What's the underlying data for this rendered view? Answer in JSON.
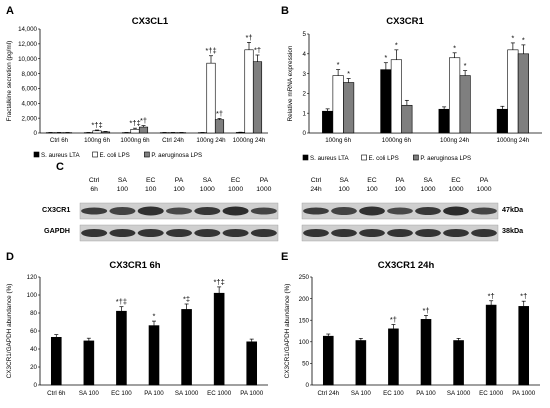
{
  "panels": {
    "A": {
      "letter": "A",
      "title": "CX3CL1"
    },
    "B": {
      "letter": "B",
      "title": "CX3CR1"
    },
    "C": {
      "letter": "C"
    },
    "D": {
      "letter": "D",
      "title": "CX3CR1 6h"
    },
    "E": {
      "letter": "E",
      "title": "CX3CR1 24h"
    }
  },
  "western_blot": {
    "rows": [
      "CX3CR1",
      "GAPDH"
    ],
    "markers": [
      "47kDa",
      "38kDa"
    ],
    "left_columns": [
      [
        "Ctrl",
        "6h"
      ],
      [
        "SA",
        "100"
      ],
      [
        "EC",
        "100"
      ],
      [
        "PA",
        "100"
      ],
      [
        "SA",
        "1000"
      ],
      [
        "EC",
        "1000"
      ],
      [
        "PA",
        "1000"
      ]
    ],
    "right_columns": [
      [
        "Ctrl",
        "24h"
      ],
      [
        "SA",
        "100"
      ],
      [
        "EC",
        "100"
      ],
      [
        "PA",
        "100"
      ],
      [
        "SA",
        "1000"
      ],
      [
        "EC",
        "1000"
      ],
      [
        "PA",
        "1000"
      ]
    ]
  },
  "colors": {
    "s_aureus": "#000000",
    "e_coli": "#ffffff",
    "p_aeruginosa": "#7f7f7f",
    "stroke": "#000000",
    "error_bar": "#000000"
  },
  "chart_data": [
    {
      "panel": "A",
      "type": "bar",
      "title": "CX3CL1",
      "ylabel": "Fractalkine secretion (pg/ml)",
      "ylim": [
        0,
        14000
      ],
      "yticks": [
        0,
        2000,
        4000,
        6000,
        8000,
        10000,
        12000,
        14000
      ],
      "categories": [
        "Ctrl 6h",
        "100ng 6h",
        "1000ng 6h",
        "Ctrl 24h",
        "100ng 24h",
        "1000ng 24h"
      ],
      "series": [
        {
          "name": "S. aureus LTA",
          "values": [
            50,
            50,
            50,
            50,
            50,
            80
          ],
          "errors": [
            20,
            20,
            20,
            20,
            20,
            30
          ]
        },
        {
          "name": "E. coli LPS",
          "values": [
            50,
            300,
            500,
            50,
            9400,
            11200
          ],
          "errors": [
            20,
            100,
            150,
            20,
            1000,
            1000
          ],
          "annotations": [
            "",
            "*†‡",
            "*†‡",
            "",
            "*†‡",
            "*†"
          ]
        },
        {
          "name": "P. aeruginosa LPS",
          "values": [
            50,
            150,
            800,
            50,
            1800,
            9600
          ],
          "errors": [
            20,
            60,
            200,
            20,
            150,
            900
          ],
          "annotations": [
            "",
            "",
            "*†",
            "",
            "*†",
            "*†"
          ]
        }
      ],
      "legend_position": "bottom"
    },
    {
      "panel": "B",
      "type": "bar",
      "title": "CX3CR1",
      "ylabel": "Relative mRNA expression",
      "ylim": [
        0,
        5
      ],
      "yticks": [
        0,
        1,
        2,
        3,
        4,
        5
      ],
      "categories": [
        "100ng 6h",
        "1000ng 6h",
        "100ng 24h",
        "1000ng 24h"
      ],
      "series": [
        {
          "name": "S. aureus LTA",
          "values": [
            1.1,
            3.2,
            1.2,
            1.2
          ],
          "errors": [
            0.12,
            0.35,
            0.12,
            0.15
          ],
          "annotations": [
            "",
            "*",
            "",
            ""
          ]
        },
        {
          "name": "E. coli LPS",
          "values": [
            2.9,
            3.7,
            3.8,
            4.2
          ],
          "errors": [
            0.3,
            0.5,
            0.25,
            0.35
          ],
          "annotations": [
            "*",
            "*",
            "*",
            "*"
          ]
        },
        {
          "name": "P. aeruginosa LPS",
          "values": [
            2.55,
            1.4,
            2.9,
            4.0
          ],
          "errors": [
            0.2,
            0.25,
            0.25,
            0.45
          ],
          "annotations": [
            "*",
            "",
            "*",
            "*"
          ]
        }
      ],
      "legend_position": "bottom"
    },
    {
      "panel": "D",
      "type": "bar",
      "title": "CX3CR1 6h",
      "ylabel": "CX3CR1/GAPDH abundance (%)",
      "ylim": [
        0,
        120
      ],
      "yticks": [
        0,
        20,
        40,
        60,
        80,
        100,
        120
      ],
      "categories": [
        "Ctrl 6h",
        "SA 100",
        "EC 100",
        "PA 100",
        "SA 1000",
        "EC 1000",
        "PA 1000"
      ],
      "values": [
        53,
        49,
        82,
        66,
        84,
        102,
        48
      ],
      "errors": [
        3,
        3,
        5,
        5,
        6,
        7,
        3
      ],
      "annotations": [
        "",
        "",
        "*†‡",
        "*",
        "*‡",
        "*†‡",
        ""
      ]
    },
    {
      "panel": "E",
      "type": "bar",
      "title": "CX3CR1 24h",
      "ylabel": "CX3CR1/GAPDH abundance (%)",
      "ylim": [
        0,
        250
      ],
      "yticks": [
        0,
        50,
        100,
        150,
        200,
        250
      ],
      "categories": [
        "Ctrl 24h",
        "SA 100",
        "EC 100",
        "PA 100",
        "SA 1000",
        "EC 1000",
        "PA 1000"
      ],
      "values": [
        113,
        103,
        130,
        152,
        103,
        185,
        182
      ],
      "errors": [
        5,
        5,
        10,
        9,
        5,
        10,
        12
      ],
      "annotations": [
        "",
        "",
        "*†",
        "*†",
        "",
        "*†",
        "*†"
      ]
    }
  ]
}
